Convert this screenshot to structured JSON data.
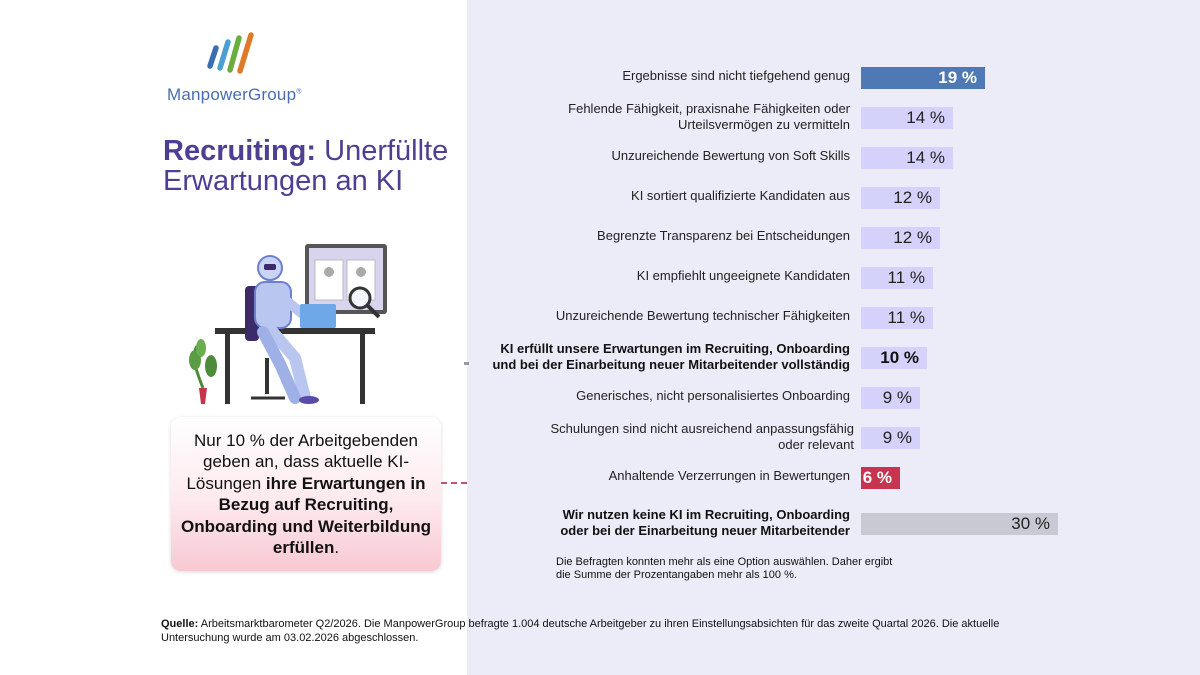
{
  "brand": {
    "name": "ManpowerGroup",
    "mark": "®"
  },
  "title": {
    "bold": "Recruiting:",
    "rest": "Unerfüllte Erwartungen an KI"
  },
  "callout": {
    "pre": "Nur 10 % der Arbeitgebenden geben an, dass aktuelle KI-Lösungen",
    "bold": "ihre Erwartungen in Bezug auf Recruiting, Onboarding und Weiterbildung erfüllen",
    "post": "."
  },
  "chart_data": {
    "type": "bar",
    "orientation": "horizontal",
    "unit": "%",
    "xlim": [
      0,
      30
    ],
    "items": [
      {
        "label": "Ergebnisse sind nicht tiefgehend genug",
        "value": 19,
        "value_label": "19 %",
        "color": "#4e79b4",
        "style": "highlight"
      },
      {
        "label": "Fehlende Fähigkeit, praxisnahe Fähigkeiten oder Urteilsvermögen zu vermitteln",
        "value": 14,
        "value_label": "14 %",
        "color": "#d4d1fa",
        "style": "normal"
      },
      {
        "label": "Unzureichende Bewertung von Soft Skills",
        "value": 14,
        "value_label": "14 %",
        "color": "#d4d1fa",
        "style": "normal"
      },
      {
        "label": "KI sortiert qualifizierte Kandidaten aus",
        "value": 12,
        "value_label": "12 %",
        "color": "#d4d1fa",
        "style": "normal"
      },
      {
        "label": "Begrenzte Transparenz bei Entscheidungen",
        "value": 12,
        "value_label": "12 %",
        "color": "#d4d1fa",
        "style": "normal"
      },
      {
        "label": "KI empfiehlt ungeeignete Kandidaten",
        "value": 11,
        "value_label": "11 %",
        "color": "#d4d1fa",
        "style": "normal"
      },
      {
        "label": "Unzureichende Bewertung technischer Fähigkeiten",
        "value": 11,
        "value_label": "11 %",
        "color": "#d4d1fa",
        "style": "normal"
      },
      {
        "label": "KI erfüllt unsere Erwartungen im Recruiting, Onboarding und bei der Einarbeitung neuer Mitarbeitender vollständig",
        "value": 10,
        "value_label": "10 %",
        "color": "#d4d1fa",
        "style": "bold"
      },
      {
        "label": "Generisches, nicht personalisiertes Onboarding",
        "value": 9,
        "value_label": "9 %",
        "color": "#d4d1fa",
        "style": "normal"
      },
      {
        "label": "Schulungen sind nicht ausreichend anpassungsfähig oder relevant",
        "value": 9,
        "value_label": "9 %",
        "color": "#d4d1fa",
        "style": "normal"
      },
      {
        "label": "Anhaltende Verzerrungen in Bewertungen",
        "value": 6,
        "value_label": "6 %",
        "color": "#c7344e",
        "style": "highlight"
      },
      {
        "label": "Wir nutzen keine KI im Recruiting, Onboarding oder bei der Einarbeitung neuer Mitarbeitender",
        "value": 30,
        "value_label": "30 %",
        "color": "#c9c9d3",
        "style": "bold"
      }
    ]
  },
  "note": "Die Befragten konnten mehr als eine Option auswählen. Daher ergibt die Summe der Prozentangaben mehr als 100 %.",
  "source": {
    "label": "Quelle:",
    "text": "Arbeitsmarktbarometer Q2/2026. Die ManpowerGroup befragte 1.004 deutsche Arbeitgeber zu ihren Einstellungsabsichten für das zweite Quartal 2026. Die aktuelle Untersuchung wurde am 03.02.2026 abgeschlossen."
  }
}
